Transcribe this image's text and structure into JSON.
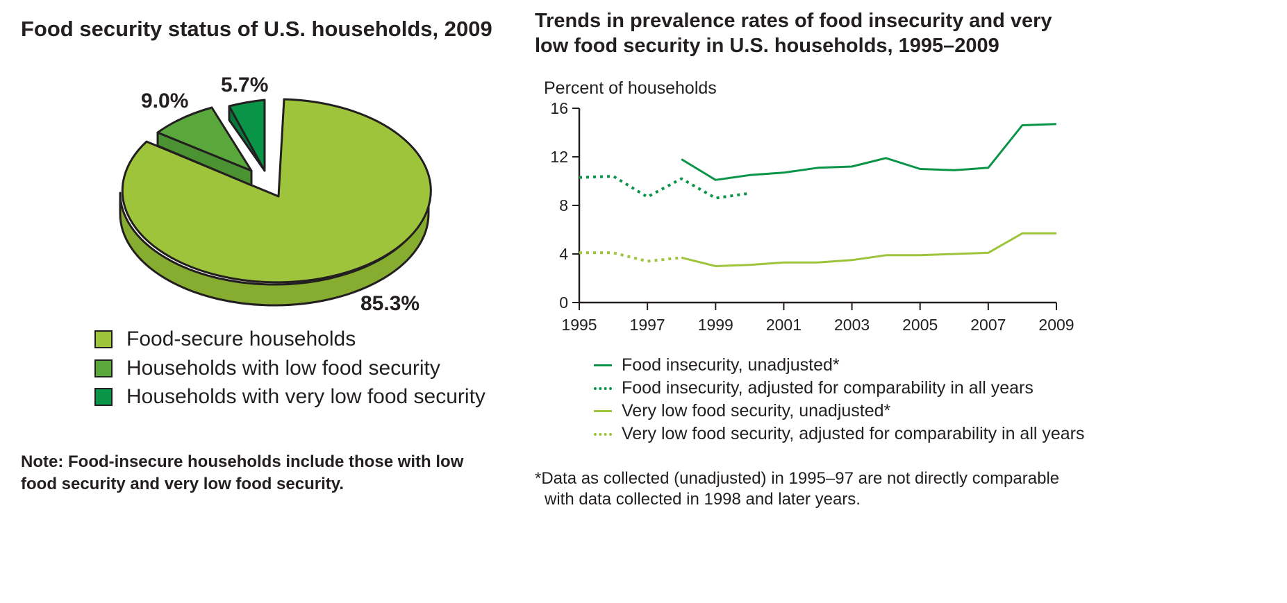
{
  "colors": {
    "food_secure": "#9dc43b",
    "food_secure_side": "#86ad30",
    "low": "#5aa83c",
    "low_side": "#4a9232",
    "very_low": "#0a9447",
    "very_low_side": "#077a39",
    "line_dark": "#0a9447",
    "line_light": "#9dc43b",
    "ink": "#231f20"
  },
  "pie": {
    "title": "Food security status of U.S. households, 2009",
    "legend": [
      {
        "label": "Food-secure households",
        "color": "#9dc43b"
      },
      {
        "label": "Households with low food security",
        "color": "#5aa83c"
      },
      {
        "label": "Households with very low food security",
        "color": "#0a9447"
      }
    ],
    "note_line1": "Note: Food-insecure households include those with low",
    "note_line2": "food security and very low food security."
  },
  "line": {
    "title_line1": "Trends in prevalence rates of food insecurity and very",
    "title_line2": "low food security in U.S. households, 1995–2009",
    "footnote_line1": "*Data as collected (unadjusted) in 1995–97 are not directly comparable",
    "footnote_line2": "with data collected in 1998 and later years."
  },
  "chart_data": [
    {
      "type": "pie",
      "title": "Food security status of U.S. households, 2009",
      "slices": [
        {
          "label": "Food-secure households",
          "value": 85.3,
          "value_label": "85.3%"
        },
        {
          "label": "Households with low food security",
          "value": 9.0,
          "value_label": "9.0%"
        },
        {
          "label": "Households with very low food security",
          "value": 5.7,
          "value_label": "5.7%"
        }
      ]
    },
    {
      "type": "line",
      "title": "Trends in prevalence rates of food insecurity and very low food security in U.S. households, 1995–2009",
      "ylabel": "Percent of households",
      "ylim": [
        0,
        16
      ],
      "yticks": [
        0,
        4,
        8,
        12,
        16
      ],
      "xlim": [
        1995,
        2009
      ],
      "xticks": [
        1995,
        1997,
        1999,
        2001,
        2003,
        2005,
        2007,
        2009
      ],
      "grid": false,
      "legend_position": "bottom",
      "series": [
        {
          "name": "Food insecurity, unadjusted*",
          "color": "#0a9447",
          "style": "solid",
          "x": [
            1998,
            1999,
            2000,
            2001,
            2002,
            2003,
            2004,
            2005,
            2006,
            2007,
            2008,
            2009
          ],
          "y": [
            11.8,
            10.1,
            10.5,
            10.7,
            11.1,
            11.2,
            11.9,
            11.0,
            10.9,
            11.1,
            14.6,
            14.7
          ]
        },
        {
          "name": "Food insecurity, adjusted for comparability in all years",
          "color": "#0a9447",
          "style": "dotted",
          "x": [
            1995,
            1996,
            1997,
            1998,
            1999,
            2000
          ],
          "y": [
            10.3,
            10.4,
            8.7,
            10.2,
            8.6,
            9.0
          ]
        },
        {
          "name": "Very low food security, unadjusted*",
          "color": "#9dc43b",
          "style": "solid",
          "x": [
            1998,
            1999,
            2000,
            2001,
            2002,
            2003,
            2004,
            2005,
            2006,
            2007,
            2008,
            2009
          ],
          "y": [
            3.7,
            3.0,
            3.1,
            3.3,
            3.3,
            3.5,
            3.9,
            3.9,
            4.0,
            4.1,
            5.7,
            5.7
          ]
        },
        {
          "name": "Very low food security, adjusted for comparability in all years",
          "color": "#9dc43b",
          "style": "dotted",
          "x": [
            1995,
            1996,
            1997,
            1998
          ],
          "y": [
            4.1,
            4.1,
            3.4,
            3.7
          ]
        }
      ]
    }
  ]
}
